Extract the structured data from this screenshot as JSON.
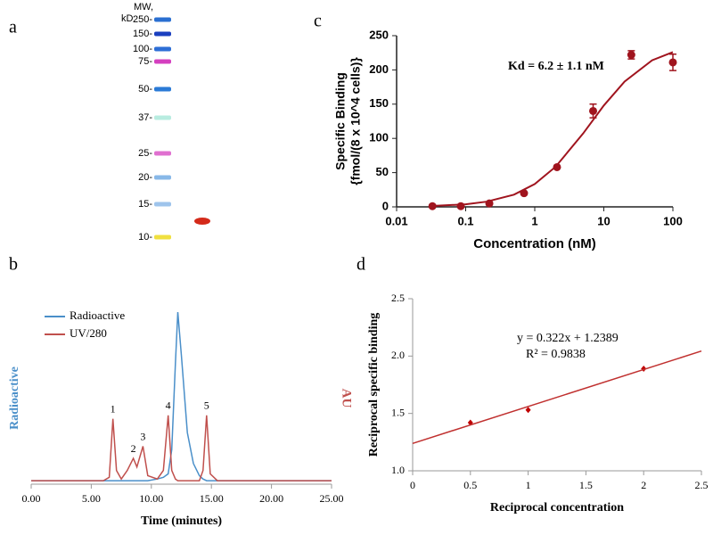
{
  "panel_labels": [
    "a",
    "b",
    "c",
    "d"
  ],
  "gel": {
    "header": [
      "MW,",
      "kD"
    ],
    "markers": [
      {
        "label": "250-",
        "color": "#2a6fd1"
      },
      {
        "label": "150-",
        "color": "#1a3fbf"
      },
      {
        "label": "100-",
        "color": "#2d6ed6"
      },
      {
        "label": "75-",
        "color": "#d43fbf"
      },
      {
        "label": "50-",
        "color": "#2a7ad6"
      },
      {
        "label": "37-",
        "color": "#b8ece0"
      },
      {
        "label": "25-",
        "color": "#e070d0"
      },
      {
        "label": "20-",
        "color": "#88b8e8"
      },
      {
        "label": "15-",
        "color": "#9ec4ec"
      },
      {
        "label": "10-",
        "color": "#f0e040"
      }
    ],
    "sample_color": "#d42a1a"
  },
  "chart_data": [
    {
      "type": "line",
      "xlabel": "Time (minutes)",
      "ylabel": "Radioactive",
      "y2label": "AU",
      "xlim": [
        0,
        25
      ],
      "ylim": [
        0,
        100
      ],
      "xticks": [
        {
          "value": 0,
          "label": "0.00"
        },
        {
          "value": 5,
          "label": "5.00"
        },
        {
          "value": 10,
          "label": "10.00"
        },
        {
          "value": 15,
          "label": "15.00"
        },
        {
          "value": 20,
          "label": "20.00"
        },
        {
          "value": 25,
          "label": "25.00"
        }
      ],
      "legend": "upper left",
      "x": [
        0,
        2,
        4,
        5,
        6,
        6.5,
        6.8,
        7.1,
        7.5,
        8,
        8.5,
        8.8,
        9.3,
        9.7,
        10.5,
        11,
        11.4,
        11.7,
        12,
        12.2,
        12.5,
        13,
        13.5,
        14,
        14.3,
        14.6,
        14.9,
        15.5,
        17,
        20,
        25
      ],
      "series": [
        {
          "name": "Radioactive",
          "color": "#4a8fc9",
          "values": [
            2,
            2,
            2,
            2,
            2,
            2,
            2,
            2,
            2,
            2,
            2,
            2,
            2,
            2,
            3,
            4,
            6,
            20,
            70,
            100,
            75,
            30,
            12,
            5,
            3,
            2,
            2,
            2,
            2,
            2,
            2
          ]
        },
        {
          "name": "UV/280",
          "color": "#c0504d",
          "values": [
            2,
            2,
            2,
            2,
            2,
            4,
            38,
            8,
            3,
            8,
            15,
            10,
            22,
            5,
            3,
            8,
            40,
            8,
            3,
            2,
            2,
            2,
            2,
            2,
            8,
            40,
            6,
            2,
            2,
            2,
            2
          ]
        }
      ],
      "annotations": [
        {
          "text": "1",
          "x": 6.8,
          "y": 38
        },
        {
          "text": "2",
          "x": 8.5,
          "y": 15
        },
        {
          "text": "3",
          "x": 9.3,
          "y": 22
        },
        {
          "text": "4",
          "x": 11.4,
          "y": 40
        },
        {
          "text": "5",
          "x": 14.6,
          "y": 40
        }
      ]
    },
    {
      "type": "scatter",
      "xlabel": "Concentration (nM)",
      "ylabel": [
        "Specific Binding",
        "{fmol/(8 x 10^4 cells)}"
      ],
      "log_x": true,
      "xlim": [
        0.01,
        100
      ],
      "ylim": [
        0,
        250
      ],
      "xticks": [
        0.01,
        0.1,
        1,
        10,
        100
      ],
      "yticks": [
        0,
        50,
        100,
        150,
        200,
        250
      ],
      "series": [
        {
          "color": "#a0141e",
          "mode": "markers",
          "x": [
            0.033,
            0.085,
            0.22,
            0.7,
            2.1,
            7,
            25,
            100
          ],
          "values": [
            1,
            1,
            5,
            20,
            58,
            140,
            222,
            211
          ],
          "errors": [
            null,
            null,
            null,
            null,
            null,
            10,
            6,
            12
          ]
        },
        {
          "color": "#a0141e",
          "mode": "line",
          "x": [
            0.03,
            0.1,
            0.2,
            0.5,
            1,
            2,
            5,
            10,
            20,
            50,
            100
          ],
          "values": [
            1.2,
            3.8,
            7.5,
            17.8,
            33.3,
            58.5,
            107,
            148,
            183,
            214,
            226
          ]
        }
      ],
      "annotations": [
        {
          "text": "Kd = 6.2 ± 1.1 nM"
        }
      ]
    },
    {
      "type": "scatter",
      "xlabel": "Reciprocal concentration",
      "ylabel": "Reciprocal specific binding",
      "xlim": [
        0,
        2.5
      ],
      "ylim": [
        1,
        2.5
      ],
      "xticks": [
        0,
        0.5,
        1,
        1.5,
        2,
        2.5
      ],
      "yticks": [
        {
          "value": 1,
          "label": "1.0"
        },
        1.5,
        {
          "value": 2,
          "label": "2.0"
        },
        2.5
      ],
      "marker": "diamond",
      "series": [
        {
          "color": "#c00000",
          "mode": "markers",
          "x": [
            0.5,
            1,
            2
          ],
          "values": [
            1.42,
            1.53,
            1.89
          ]
        },
        {
          "color": "#c0302f",
          "mode": "line",
          "x": [
            0,
            2.5
          ],
          "values": [
            1.2389,
            2.0439
          ]
        }
      ],
      "annotations": [
        {
          "text": "y = 0.322x + 1.2389"
        },
        {
          "text": "R² = 0.9838"
        }
      ]
    }
  ]
}
